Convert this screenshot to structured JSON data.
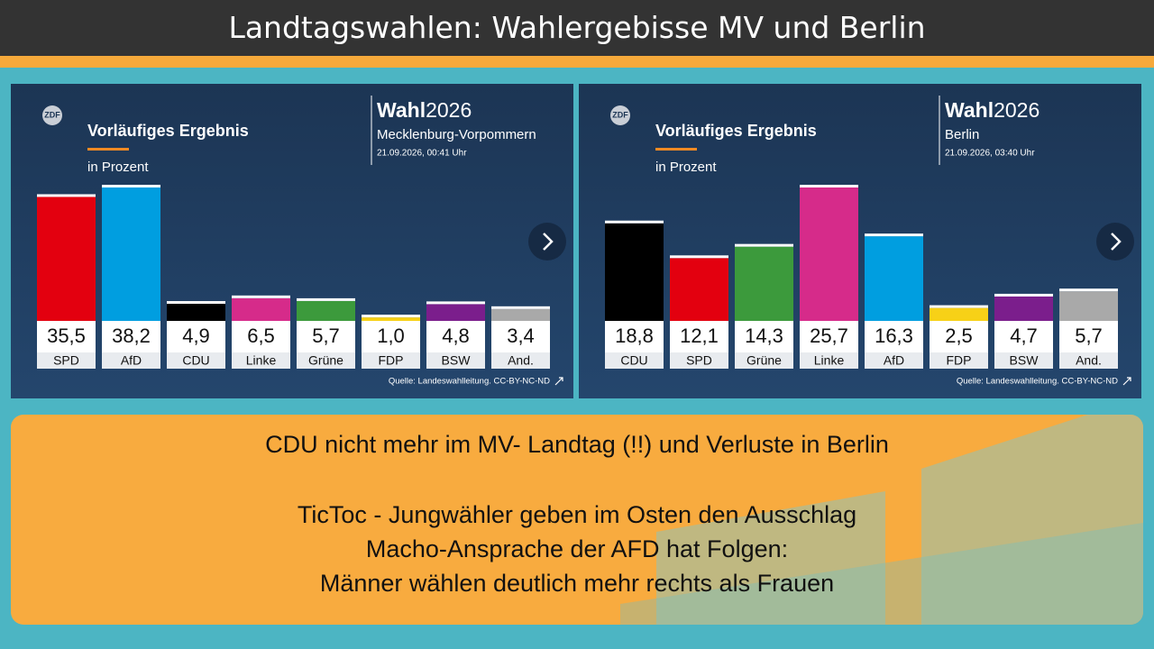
{
  "slide": {
    "title": "Landtagswahlen: Wahlergebisse MV und Berlin",
    "notes": [
      "CDU nicht mehr im MV- Landtag (!!) und Verluste in Berlin",
      "TicToc - Jungwähler geben im Osten den Ausschlag",
      "Macho-Ansprache der AFD hat Folgen:",
      "Männer wählen deutlich mehr rechts als Frauen"
    ]
  },
  "chart_data": [
    {
      "type": "bar",
      "logo": "ZDF",
      "brand": "Wahl",
      "brand_year": "2026",
      "region": "Mecklenburg-Vorpommern",
      "date": "21.09.2026, 00:41 Uhr",
      "title": "Vorläufiges Ergebnis",
      "subtitle": "in Prozent",
      "source": "Quelle: Landeswahlleitung. CC-BY-NC-ND",
      "categories": [
        "SPD",
        "AfD",
        "CDU",
        "Linke",
        "Grüne",
        "FDP",
        "BSW",
        "And."
      ],
      "values": [
        35.5,
        38.2,
        4.9,
        6.5,
        5.7,
        1.0,
        4.8,
        3.4
      ],
      "value_labels": [
        "35,5",
        "38,2",
        "4,9",
        "6,5",
        "5,7",
        "1,0",
        "4,8",
        "3,4"
      ],
      "colors": [
        "#e3000f",
        "#009ee0",
        "#000000",
        "#d62b8a",
        "#3c9a3c",
        "#f7d117",
        "#7b1e8c",
        "#a9a9a9"
      ]
    },
    {
      "type": "bar",
      "logo": "ZDF",
      "brand": "Wahl",
      "brand_year": "2026",
      "region": "Berlin",
      "date": "21.09.2026, 03:40 Uhr",
      "title": "Vorläufiges Ergebnis",
      "subtitle": "in Prozent",
      "source": "Quelle: Landeswahlleitung. CC-BY-NC-ND",
      "categories": [
        "CDU",
        "SPD",
        "Grüne",
        "Linke",
        "AfD",
        "FDP",
        "BSW",
        "And."
      ],
      "values": [
        18.8,
        12.1,
        14.3,
        25.7,
        16.3,
        2.5,
        4.7,
        5.7
      ],
      "value_labels": [
        "18,8",
        "12,1",
        "14,3",
        "25,7",
        "16,3",
        "2,5",
        "4,7",
        "5,7"
      ],
      "colors": [
        "#000000",
        "#e3000f",
        "#3c9a3c",
        "#d62b8a",
        "#009ee0",
        "#f7d117",
        "#7b1e8c",
        "#a9a9a9"
      ]
    }
  ]
}
